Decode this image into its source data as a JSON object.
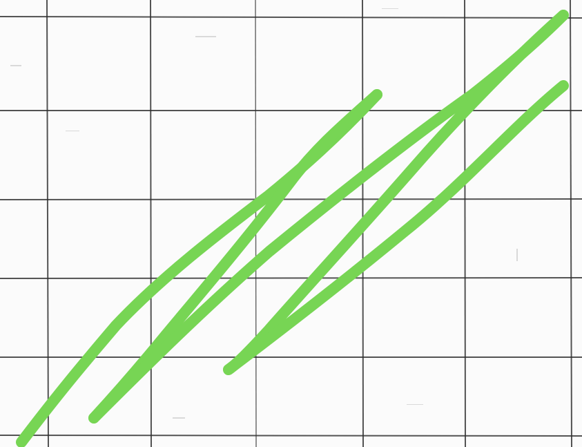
{
  "colors": {
    "paper": "#fbfbfb",
    "grid": "#2e2e2e",
    "scribble": "#77d554"
  },
  "content": {
    "description_visible_text": ""
  }
}
